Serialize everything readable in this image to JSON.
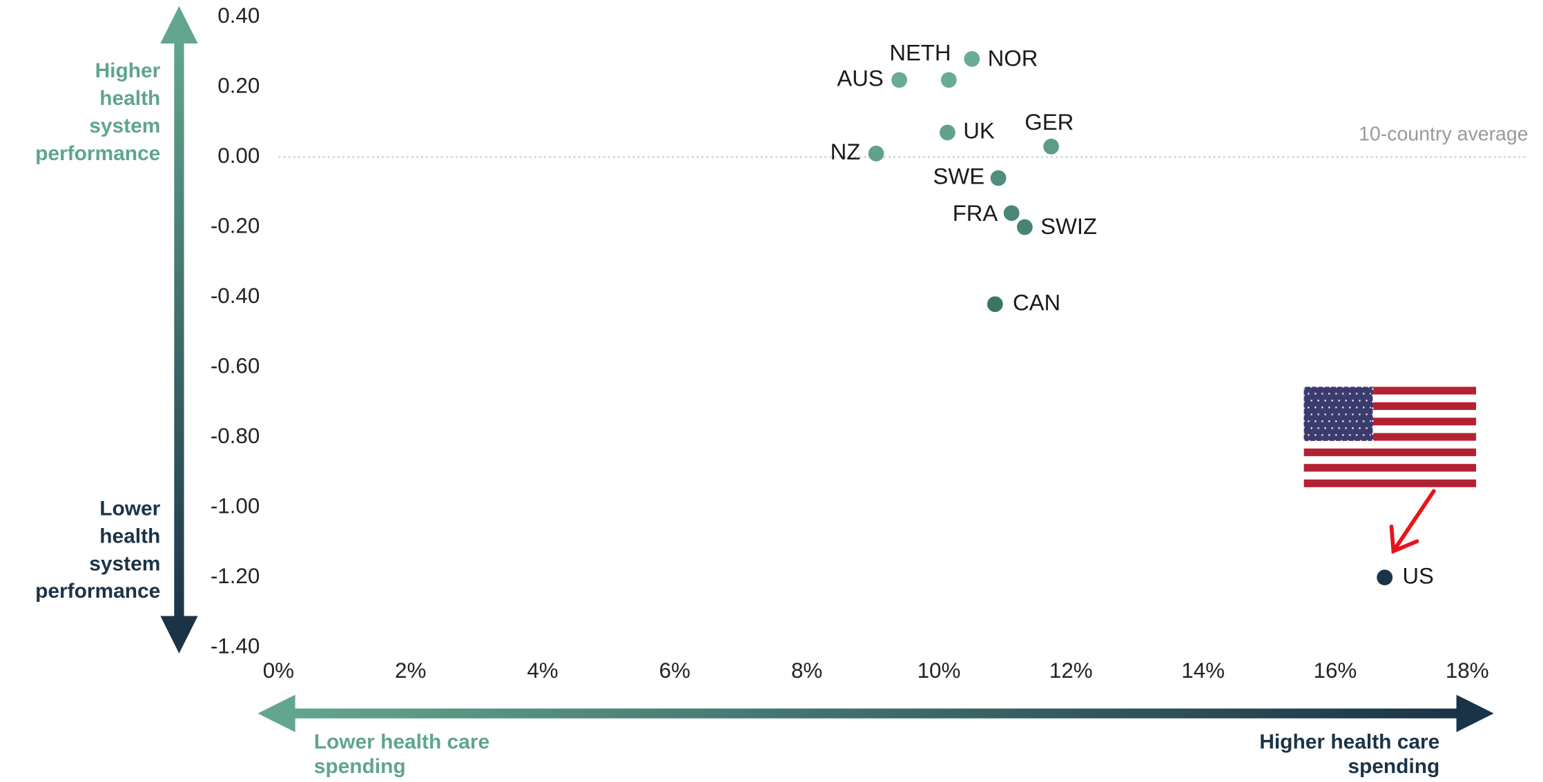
{
  "chart_data": {
    "type": "scatter",
    "series": [
      {
        "name": null,
        "labels": [
          "AUS",
          "NETH",
          "NOR",
          "UK",
          "GER",
          "NZ",
          "SWE",
          "FRA",
          "SWIZ",
          "CAN",
          "US"
        ],
        "x": [
          9.4,
          10.15,
          10.5,
          10.13,
          11.7,
          9.05,
          10.9,
          11.1,
          11.3,
          10.85,
          16.75
        ],
        "values": [
          0.22,
          0.22,
          0.28,
          0.07,
          0.03,
          0.01,
          -0.06,
          -0.16,
          -0.2,
          -0.42,
          -1.2
        ],
        "colors": [
          "#6aab94",
          "#6aab94",
          "#6aab94",
          "#62a28d",
          "#5d9c88",
          "#62a28d",
          "#4f8d7c",
          "#4a8777",
          "#478475",
          "#3c7568",
          "#1b3347"
        ]
      }
    ],
    "xlim": [
      0,
      18
    ],
    "xticks": [
      {
        "value": 0,
        "label": "0%"
      },
      {
        "value": 2,
        "label": "2%"
      },
      {
        "value": 4,
        "label": "4%"
      },
      {
        "value": 6,
        "label": "6%"
      },
      {
        "value": 8,
        "label": "8%"
      },
      {
        "value": 10,
        "label": "10%"
      },
      {
        "value": 12,
        "label": "12%"
      },
      {
        "value": 14,
        "label": "14%"
      },
      {
        "value": 16,
        "label": "16%"
      },
      {
        "value": 18,
        "label": "18%"
      }
    ],
    "ylim": [
      -1.4,
      0.4
    ],
    "yticks": [
      {
        "value": 0.4,
        "label": "0.40"
      },
      {
        "value": 0.2,
        "label": "0.20"
      },
      {
        "value": 0,
        "label": "0.00"
      },
      {
        "value": -0.2,
        "label": "-0.20"
      },
      {
        "value": -0.4,
        "label": "-0.40"
      },
      {
        "value": -0.6,
        "label": "-0.60"
      },
      {
        "value": -0.8,
        "label": "-0.80"
      },
      {
        "value": -1,
        "label": "-1.00"
      },
      {
        "value": -1.2,
        "label": "-1.20"
      },
      {
        "value": -1.4,
        "label": "-1.40"
      }
    ],
    "reference_line": {
      "value": 0,
      "label": "10-country average"
    },
    "y_axis_top_note": [
      "Higher",
      "health",
      "system",
      "performance"
    ],
    "y_axis_bottom_note": [
      "Lower",
      "health",
      "system",
      "performance"
    ],
    "x_axis_left_note": [
      "Lower health care",
      "spending"
    ],
    "x_axis_right_note": [
      "Higher health care",
      "spending"
    ]
  }
}
